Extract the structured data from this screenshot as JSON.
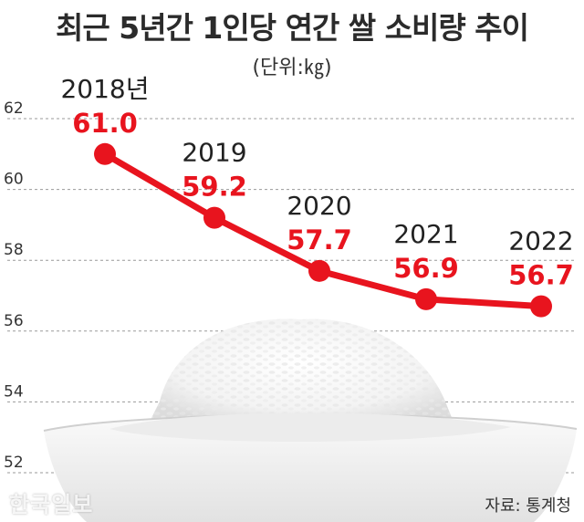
{
  "title": "최근 5년간 1인당 연간 쌀 소비량 추이",
  "unit_label": "(단위:㎏)",
  "source": "자료: 통계청",
  "watermark": "한국일보",
  "colors": {
    "line": "#e8141e",
    "label": "#e8141e",
    "year": "#222222",
    "grid": "#9a9a9a"
  },
  "chart_data": {
    "type": "line",
    "title": "최근 5년간 1인당 연간 쌀 소비량 추이",
    "ylabel": "(단위:㎏)",
    "categories": [
      "2018년",
      "2019",
      "2020",
      "2021",
      "2022"
    ],
    "series": [
      {
        "values": [
          61.0,
          59.2,
          57.7,
          56.9,
          56.7
        ]
      }
    ],
    "value_labels": [
      "61.0",
      "59.2",
      "57.7",
      "56.9",
      "56.7"
    ],
    "yticks": [
      62,
      60,
      58,
      56,
      54,
      52
    ],
    "ylim": [
      52,
      62
    ],
    "grid": true
  }
}
